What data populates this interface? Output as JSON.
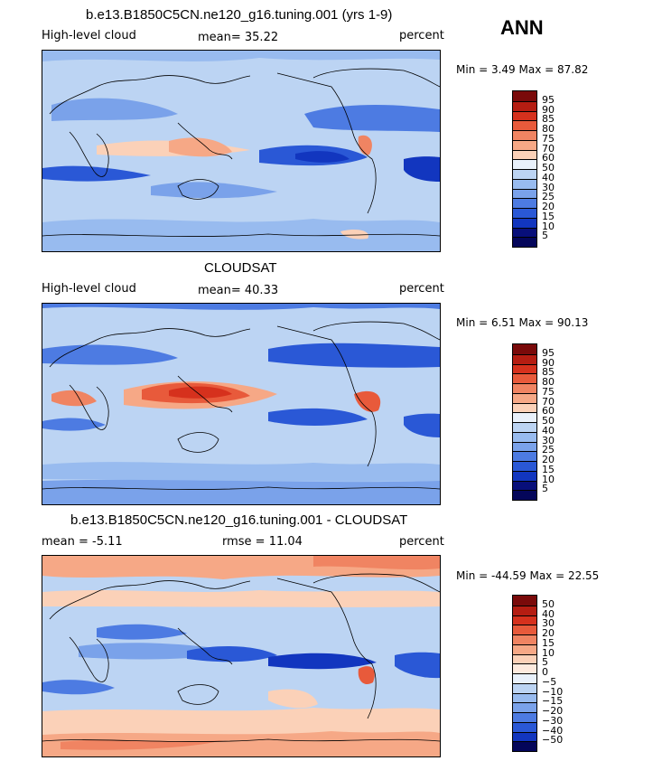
{
  "season": "ANN",
  "panels": [
    {
      "title": "b.e13.B1850C5CN.ne120_g16.tuning.001 (yrs 1-9)",
      "left_label": "High-level cloud",
      "center_label": "mean=  35.22",
      "right_label": "percent",
      "minmax": "Min =    3.49 Max =   87.82",
      "colorbar": {
        "labels": [
          "95",
          "90",
          "85",
          "80",
          "75",
          "70",
          "60",
          "50",
          "40",
          "30",
          "25",
          "20",
          "15",
          "10",
          "5"
        ],
        "colors": [
          "#7a0a0a",
          "#b51d12",
          "#d6311d",
          "#e85a3b",
          "#f08462",
          "#f6a886",
          "#fbd1b8",
          "#e9f1fb",
          "#bcd4f3",
          "#98bbef",
          "#7aa2ea",
          "#4d7be2",
          "#2a58d6",
          "#1236bf",
          "#080f7a",
          "#04065a"
        ]
      }
    },
    {
      "title": "CLOUDSAT",
      "left_label": "High-level cloud",
      "center_label": "mean=  40.33",
      "right_label": "percent",
      "minmax": "Min =    6.51 Max =   90.13",
      "colorbar": {
        "labels": [
          "95",
          "90",
          "85",
          "80",
          "75",
          "70",
          "60",
          "50",
          "40",
          "30",
          "25",
          "20",
          "15",
          "10",
          "5"
        ],
        "colors": [
          "#7a0a0a",
          "#b51d12",
          "#d6311d",
          "#e85a3b",
          "#f08462",
          "#f6a886",
          "#fbd1b8",
          "#e9f1fb",
          "#bcd4f3",
          "#98bbef",
          "#7aa2ea",
          "#4d7be2",
          "#2a58d6",
          "#1236bf",
          "#080f7a",
          "#04065a"
        ]
      }
    },
    {
      "title": "b.e13.B1850C5CN.ne120_g16.tuning.001 - CLOUDSAT",
      "left_label": "mean =   -5.11",
      "center_label": "rmse =   11.04",
      "right_label": "percent",
      "minmax": "Min = -44.59 Max =   22.55",
      "colorbar": {
        "labels": [
          "50",
          "40",
          "30",
          "20",
          "15",
          "10",
          "5",
          "0",
          "−5",
          "−10",
          "−15",
          "−20",
          "−30",
          "−40",
          "−50"
        ],
        "colors": [
          "#7a0a0a",
          "#b51d12",
          "#d6311d",
          "#e85a3b",
          "#f08462",
          "#f6a886",
          "#fbd1b8",
          "#fdeade",
          "#e9f1fb",
          "#bcd4f3",
          "#98bbef",
          "#7aa2ea",
          "#4d7be2",
          "#2a58d6",
          "#1236bf",
          "#04065a"
        ]
      }
    }
  ]
}
